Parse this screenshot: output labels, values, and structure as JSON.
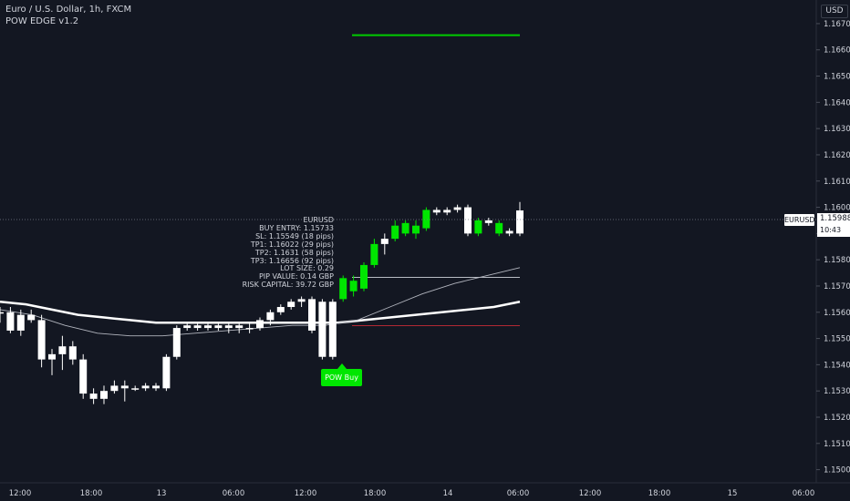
{
  "header": {
    "title": "Euro / U.S. Dollar, 1h, FXCM",
    "indicator": "POW EDGE v1.2"
  },
  "currency": "USD",
  "price_axis": {
    "ticks": [
      "1.16700",
      "1.16600",
      "1.16500",
      "1.16400",
      "1.16300",
      "1.16200",
      "1.16100",
      "1.16000",
      "1.15900",
      "1.15800",
      "1.15700",
      "1.15600",
      "1.15500",
      "1.15400",
      "1.15300",
      "1.15200",
      "1.15100",
      "1.15000"
    ]
  },
  "time_axis": {
    "ticks": [
      "12:00",
      "18:00",
      "13",
      "06:00",
      "12:00",
      "18:00",
      "14",
      "06:00",
      "12:00",
      "18:00",
      "15",
      "06:00"
    ]
  },
  "last_price": {
    "symbol": "EURUSD",
    "value": "1.15988",
    "countdown": "10:43"
  },
  "trade_info": {
    "lines": [
      "EURUSD",
      "BUY ENTRY: 1.15733",
      "SL: 1.15549 (18 pips)",
      "TP1: 1.16022 (29 pips)",
      "TP2: 1.1631 (58 pips)",
      "TP3: 1.16656 (92 pips)",
      "LOT SIZE: 0.29",
      "PIP VALUE: 0.14 GBP",
      "RISK CAPITAL: 39.72 GBP"
    ]
  },
  "signal_label": "POW Buy",
  "colors": {
    "background": "#131722",
    "bull_signal": "#00e600",
    "candle": "#ffffff",
    "stop_loss": "#b22833",
    "take_profit": "#00cc00",
    "text": "#d1d4dc"
  },
  "chart_data": {
    "type": "candlestick",
    "symbol": "EURUSD",
    "timeframe": "1h",
    "ylim": [
      1.1495,
      1.1679
    ],
    "candles": [
      {
        "o": 1.156,
        "h": 1.1562,
        "l": 1.1556,
        "c": 1.156,
        "sig": false
      },
      {
        "o": 1.156,
        "h": 1.1562,
        "l": 1.1552,
        "c": 1.1553,
        "sig": false
      },
      {
        "o": 1.1553,
        "h": 1.1561,
        "l": 1.1551,
        "c": 1.1559,
        "sig": false
      },
      {
        "o": 1.1559,
        "h": 1.1561,
        "l": 1.1556,
        "c": 1.1557,
        "sig": false
      },
      {
        "o": 1.1557,
        "h": 1.1559,
        "l": 1.1539,
        "c": 1.1542,
        "sig": false
      },
      {
        "o": 1.1542,
        "h": 1.1546,
        "l": 1.1536,
        "c": 1.1544,
        "sig": false
      },
      {
        "o": 1.1544,
        "h": 1.1551,
        "l": 1.1538,
        "c": 1.1547,
        "sig": false
      },
      {
        "o": 1.1547,
        "h": 1.1549,
        "l": 1.154,
        "c": 1.1542,
        "sig": false
      },
      {
        "o": 1.1542,
        "h": 1.1544,
        "l": 1.1527,
        "c": 1.1529,
        "sig": false
      },
      {
        "o": 1.1529,
        "h": 1.1531,
        "l": 1.1525,
        "c": 1.1527,
        "sig": false
      },
      {
        "o": 1.1527,
        "h": 1.1532,
        "l": 1.1525,
        "c": 1.153,
        "sig": false
      },
      {
        "o": 1.153,
        "h": 1.1534,
        "l": 1.1529,
        "c": 1.1532,
        "sig": false
      },
      {
        "o": 1.1532,
        "h": 1.1534,
        "l": 1.1526,
        "c": 1.1531,
        "sig": false
      },
      {
        "o": 1.1531,
        "h": 1.1532,
        "l": 1.153,
        "c": 1.1531,
        "sig": false
      },
      {
        "o": 1.1531,
        "h": 1.1533,
        "l": 1.153,
        "c": 1.1532,
        "sig": false
      },
      {
        "o": 1.1532,
        "h": 1.1533,
        "l": 1.153,
        "c": 1.1531,
        "sig": false
      },
      {
        "o": 1.1531,
        "h": 1.1544,
        "l": 1.153,
        "c": 1.1543,
        "sig": false
      },
      {
        "o": 1.1543,
        "h": 1.1555,
        "l": 1.1542,
        "c": 1.1554,
        "sig": false
      },
      {
        "o": 1.1554,
        "h": 1.1556,
        "l": 1.1553,
        "c": 1.1555,
        "sig": false
      },
      {
        "o": 1.1555,
        "h": 1.1556,
        "l": 1.1553,
        "c": 1.1554,
        "sig": false
      },
      {
        "o": 1.1554,
        "h": 1.1556,
        "l": 1.1553,
        "c": 1.1555,
        "sig": false
      },
      {
        "o": 1.1555,
        "h": 1.1556,
        "l": 1.1553,
        "c": 1.1554,
        "sig": false
      },
      {
        "o": 1.1554,
        "h": 1.1556,
        "l": 1.1552,
        "c": 1.1555,
        "sig": false
      },
      {
        "o": 1.1555,
        "h": 1.1556,
        "l": 1.1552,
        "c": 1.1554,
        "sig": false
      },
      {
        "o": 1.1554,
        "h": 1.1556,
        "l": 1.1552,
        "c": 1.1554,
        "sig": false
      },
      {
        "o": 1.1554,
        "h": 1.1558,
        "l": 1.1553,
        "c": 1.1557,
        "sig": false
      },
      {
        "o": 1.1557,
        "h": 1.1561,
        "l": 1.1555,
        "c": 1.156,
        "sig": false
      },
      {
        "o": 1.156,
        "h": 1.1563,
        "l": 1.1559,
        "c": 1.1562,
        "sig": false
      },
      {
        "o": 1.1562,
        "h": 1.1565,
        "l": 1.1561,
        "c": 1.1564,
        "sig": false
      },
      {
        "o": 1.1564,
        "h": 1.1566,
        "l": 1.1562,
        "c": 1.1565,
        "sig": false
      },
      {
        "o": 1.1565,
        "h": 1.1566,
        "l": 1.1552,
        "c": 1.1553,
        "sig": false
      },
      {
        "o": 1.1564,
        "h": 1.1565,
        "l": 1.1542,
        "c": 1.1543,
        "sig": false
      },
      {
        "o": 1.1543,
        "h": 1.1565,
        "l": 1.1542,
        "c": 1.1564,
        "sig": false
      },
      {
        "o": 1.1565,
        "h": 1.1574,
        "l": 1.1564,
        "c": 1.1573,
        "sig": true
      },
      {
        "o": 1.1568,
        "h": 1.1574,
        "l": 1.1566,
        "c": 1.1572,
        "sig": true
      },
      {
        "o": 1.1569,
        "h": 1.1579,
        "l": 1.1568,
        "c": 1.1578,
        "sig": true
      },
      {
        "o": 1.1578,
        "h": 1.1588,
        "l": 1.1577,
        "c": 1.1586,
        "sig": true
      },
      {
        "o": 1.1586,
        "h": 1.159,
        "l": 1.1582,
        "c": 1.1588,
        "sig": false
      },
      {
        "o": 1.1588,
        "h": 1.1595,
        "l": 1.1587,
        "c": 1.1593,
        "sig": true
      },
      {
        "o": 1.159,
        "h": 1.1595,
        "l": 1.1589,
        "c": 1.1594,
        "sig": true
      },
      {
        "o": 1.159,
        "h": 1.1595,
        "l": 1.1588,
        "c": 1.1593,
        "sig": true
      },
      {
        "o": 1.1592,
        "h": 1.16,
        "l": 1.1591,
        "c": 1.1599,
        "sig": true
      },
      {
        "o": 1.1599,
        "h": 1.16,
        "l": 1.1597,
        "c": 1.1598,
        "sig": false
      },
      {
        "o": 1.1598,
        "h": 1.16,
        "l": 1.1597,
        "c": 1.1599,
        "sig": false
      },
      {
        "o": 1.1599,
        "h": 1.1601,
        "l": 1.1598,
        "c": 1.16,
        "sig": false
      },
      {
        "o": 1.16,
        "h": 1.1601,
        "l": 1.1589,
        "c": 1.159,
        "sig": false
      },
      {
        "o": 1.159,
        "h": 1.1596,
        "l": 1.1589,
        "c": 1.1595,
        "sig": true
      },
      {
        "o": 1.1595,
        "h": 1.1596,
        "l": 1.1593,
        "c": 1.1594,
        "sig": false
      },
      {
        "o": 1.159,
        "h": 1.1595,
        "l": 1.1589,
        "c": 1.1594,
        "sig": true
      },
      {
        "o": 1.1591,
        "h": 1.1592,
        "l": 1.1589,
        "c": 1.159,
        "sig": false
      },
      {
        "o": 1.159,
        "h": 1.1602,
        "l": 1.1589,
        "c": 1.15988,
        "sig": false
      }
    ],
    "levels": {
      "tp3": 1.16656,
      "entry": 1.15733,
      "sl": 1.15549
    },
    "moving_averages": [
      {
        "style": "thick",
        "points": [
          1.1564,
          1.1563,
          1.1561,
          1.1559,
          1.1558,
          1.1557,
          1.1556,
          1.1556,
          1.1556,
          1.1556,
          1.1556,
          1.1556,
          1.1556,
          1.1556,
          1.1557,
          1.1558,
          1.1559,
          1.156,
          1.1561,
          1.1562,
          1.1564
        ]
      },
      {
        "style": "thin",
        "points": [
          1.1561,
          1.1559,
          1.1555,
          1.1552,
          1.1551,
          1.1551,
          1.1552,
          1.1553,
          1.1554,
          1.1555,
          1.1555,
          1.1557,
          1.1562,
          1.1567,
          1.1571,
          1.1574,
          1.1577
        ]
      }
    ]
  }
}
